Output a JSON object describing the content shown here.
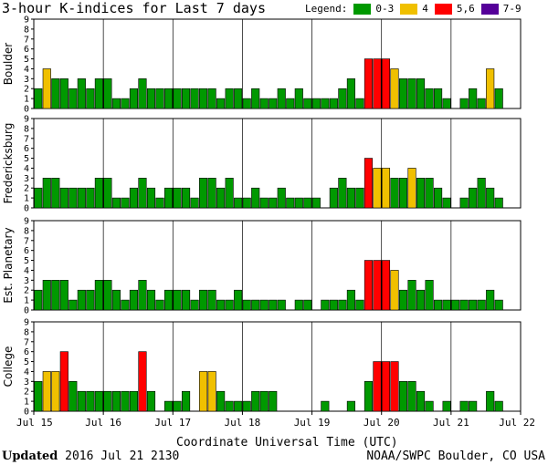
{
  "title": "3-hour K-indices for Last 7 days",
  "legend": {
    "label": "Legend:",
    "items": [
      {
        "label": "0-3",
        "color": "#009900"
      },
      {
        "label": "4",
        "color": "#f0c000"
      },
      {
        "label": "5,6",
        "color": "#ff0000"
      },
      {
        "label": "7-9",
        "color": "#550099"
      }
    ]
  },
  "x_axis_title": "Coordinate Universal Time (UTC)",
  "footer": {
    "updated_label": "Updated",
    "updated_value": "2016 Jul 21 2130",
    "source": "NOAA/SWPC Boulder, CO USA"
  },
  "chart_data": {
    "type": "bar",
    "x_tick_labels": [
      "Jul 15",
      "Jul 16",
      "Jul 17",
      "Jul 18",
      "Jul 19",
      "Jul 20",
      "Jul 21",
      "Jul 22"
    ],
    "ylim": [
      0,
      9
    ],
    "y_tick_labels": [
      "0",
      "1",
      "2",
      "3",
      "4",
      "5",
      "6",
      "7",
      "8",
      "9"
    ],
    "bars_per_day": 8,
    "panels": [
      {
        "name": "Boulder",
        "values": [
          2,
          4,
          3,
          3,
          2,
          3,
          2,
          3,
          3,
          1,
          1,
          2,
          3,
          2,
          2,
          2,
          2,
          2,
          2,
          2,
          2,
          1,
          2,
          2,
          1,
          2,
          1,
          1,
          2,
          1,
          2,
          1,
          1,
          1,
          1,
          2,
          3,
          1,
          5,
          5,
          5,
          4,
          3,
          3,
          3,
          2,
          2,
          1,
          0,
          1,
          2,
          1,
          4,
          2,
          0
        ]
      },
      {
        "name": "Fredericksburg",
        "values": [
          2,
          3,
          3,
          2,
          2,
          2,
          2,
          3,
          3,
          1,
          1,
          2,
          3,
          2,
          1,
          2,
          2,
          2,
          1,
          3,
          3,
          2,
          3,
          1,
          1,
          2,
          1,
          1,
          2,
          1,
          1,
          1,
          1,
          0,
          2,
          3,
          2,
          2,
          5,
          4,
          4,
          3,
          3,
          4,
          3,
          3,
          2,
          1,
          0,
          1,
          2,
          3,
          2,
          1,
          0
        ]
      },
      {
        "name": "Est. Planetary",
        "values": [
          2,
          3,
          3,
          3,
          1,
          2,
          2,
          3,
          3,
          2,
          1,
          2,
          3,
          2,
          1,
          2,
          2,
          2,
          1,
          2,
          2,
          1,
          1,
          2,
          1,
          1,
          1,
          1,
          1,
          0,
          1,
          1,
          0,
          1,
          1,
          1,
          2,
          1,
          5,
          5,
          5,
          4,
          2,
          3,
          2,
          3,
          1,
          1,
          1,
          1,
          1,
          1,
          2,
          1,
          0
        ]
      },
      {
        "name": "College",
        "values": [
          3,
          4,
          4,
          6,
          3,
          2,
          2,
          2,
          2,
          2,
          2,
          2,
          6,
          2,
          0,
          1,
          1,
          2,
          0,
          4,
          4,
          2,
          1,
          1,
          1,
          2,
          2,
          2,
          0,
          0,
          0,
          0,
          0,
          1,
          0,
          0,
          1,
          0,
          3,
          5,
          5,
          5,
          3,
          3,
          2,
          1,
          0,
          1,
          0,
          1,
          1,
          0,
          2,
          1,
          0
        ]
      }
    ]
  }
}
